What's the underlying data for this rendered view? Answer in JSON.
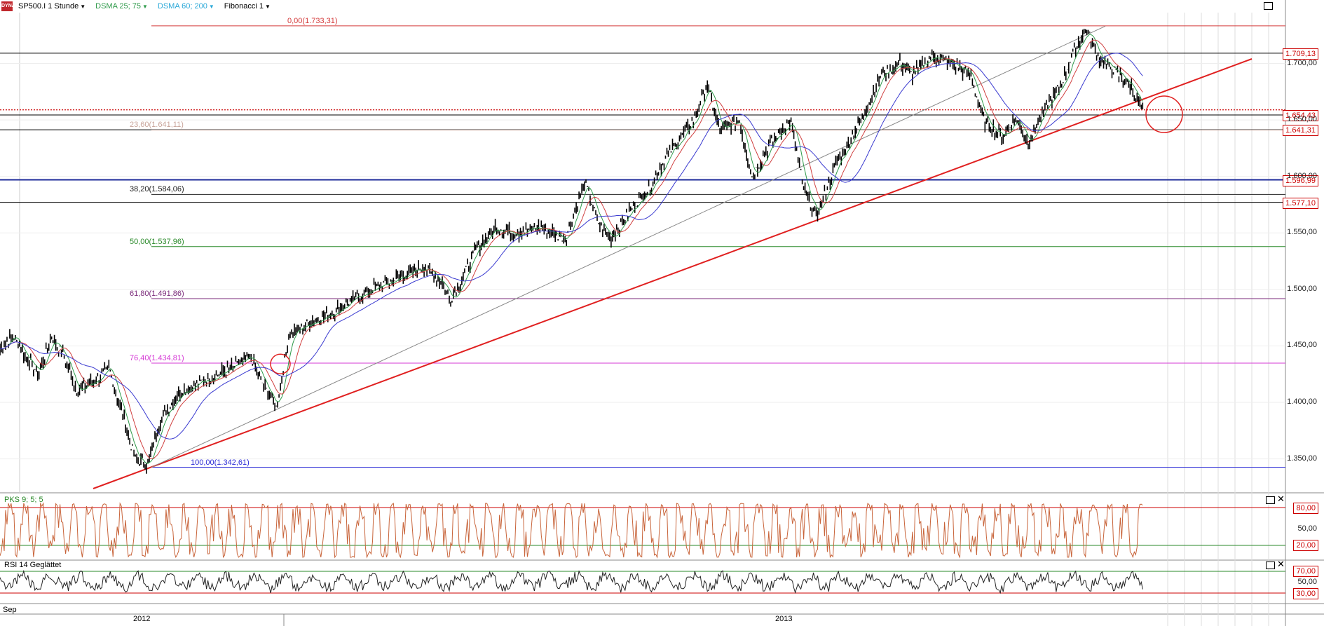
{
  "toolbar": {
    "symbol": "SP500.I 1 Stunde",
    "dsma1": "DSMA 25; 75",
    "dsma2": "DSMA 60; 200",
    "fibonacci": "Fibonacci 1",
    "logo_text": "DYNA"
  },
  "fib_levels": [
    {
      "label": "0,00(1.733,31)",
      "value": 1733.31,
      "color": "#d43a3a"
    },
    {
      "label": "23,60(1.641,11)",
      "value": 1641.11,
      "color": "#c8a49a"
    },
    {
      "label": "38,20(1.584,06)",
      "value": 1584.06,
      "color": "#222222"
    },
    {
      "label": "50,00(1.537,96)",
      "value": 1537.96,
      "color": "#2a8a2a"
    },
    {
      "label": "61,80(1.491,86)",
      "value": 1491.86,
      "color": "#7a2a7a"
    },
    {
      "label": "76,40(1.434,81)",
      "value": 1434.81,
      "color": "#d63ad6"
    },
    {
      "label": "100,00(1.342,61)",
      "value": 1342.61,
      "color": "#2a2ad6"
    }
  ],
  "price_tags": [
    {
      "label": "1.709,13",
      "value": 1709.13
    },
    {
      "label": "1.654,43",
      "value": 1654.43
    },
    {
      "label": "1.641,31",
      "value": 1641.31
    },
    {
      "label": "1.596,99",
      "value": 1596.99
    },
    {
      "label": "1.577,10",
      "value": 1577.1
    }
  ],
  "price_axis_labels": [
    "1.700,00",
    "1.650,00",
    "1.600,00",
    "1.550,00",
    "1.500,00",
    "1.450,00",
    "1.400,00",
    "1.350,00"
  ],
  "pks_panel": {
    "label": "PKS 9; 5; 5",
    "upper": "80,00",
    "lower": "20,00",
    "mid": "50,00"
  },
  "rsi_panel": {
    "label": "RSI 14 Geglättet",
    "upper": "70,00",
    "lower": "30,00",
    "mid": "50,00"
  },
  "x_axis": {
    "left_label": "Sep",
    "year1": "2012",
    "year2": "2013"
  },
  "chart_data": {
    "type": "line",
    "title": "SP500.I 1 Stunde",
    "price_path": [
      [
        0,
        1447
      ],
      [
        0.01,
        1460
      ],
      [
        0.02,
        1440
      ],
      [
        0.03,
        1425
      ],
      [
        0.04,
        1458
      ],
      [
        0.05,
        1440
      ],
      [
        0.06,
        1410
      ],
      [
        0.075,
        1420
      ],
      [
        0.085,
        1430
      ],
      [
        0.095,
        1390
      ],
      [
        0.105,
        1350
      ],
      [
        0.115,
        1345
      ],
      [
        0.125,
        1385
      ],
      [
        0.14,
        1410
      ],
      [
        0.16,
        1420
      ],
      [
        0.18,
        1430
      ],
      [
        0.195,
        1440
      ],
      [
        0.205,
        1415
      ],
      [
        0.215,
        1395
      ],
      [
        0.225,
        1460
      ],
      [
        0.24,
        1470
      ],
      [
        0.26,
        1480
      ],
      [
        0.28,
        1495
      ],
      [
        0.3,
        1505
      ],
      [
        0.32,
        1515
      ],
      [
        0.33,
        1520
      ],
      [
        0.345,
        1505
      ],
      [
        0.35,
        1490
      ],
      [
        0.36,
        1510
      ],
      [
        0.37,
        1535
      ],
      [
        0.385,
        1555
      ],
      [
        0.4,
        1550
      ],
      [
        0.42,
        1555
      ],
      [
        0.44,
        1545
      ],
      [
        0.455,
        1595
      ],
      [
        0.465,
        1560
      ],
      [
        0.475,
        1545
      ],
      [
        0.49,
        1570
      ],
      [
        0.505,
        1590
      ],
      [
        0.52,
        1620
      ],
      [
        0.54,
        1650
      ],
      [
        0.55,
        1682
      ],
      [
        0.56,
        1640
      ],
      [
        0.575,
        1650
      ],
      [
        0.585,
        1600
      ],
      [
        0.6,
        1630
      ],
      [
        0.615,
        1650
      ],
      [
        0.625,
        1590
      ],
      [
        0.635,
        1565
      ],
      [
        0.65,
        1610
      ],
      [
        0.67,
        1650
      ],
      [
        0.685,
        1690
      ],
      [
        0.7,
        1700
      ],
      [
        0.71,
        1690
      ],
      [
        0.725,
        1707
      ],
      [
        0.74,
        1700
      ],
      [
        0.755,
        1690
      ],
      [
        0.765,
        1650
      ],
      [
        0.78,
        1635
      ],
      [
        0.79,
        1652
      ],
      [
        0.8,
        1630
      ],
      [
        0.81,
        1655
      ],
      [
        0.825,
        1680
      ],
      [
        0.835,
        1710
      ],
      [
        0.845,
        1730
      ],
      [
        0.855,
        1705
      ],
      [
        0.87,
        1690
      ],
      [
        0.88,
        1680
      ],
      [
        0.89,
        1655
      ]
    ],
    "fib_high": 1733.31,
    "fib_low": 1342.61,
    "y_axis_range": [
      1320,
      1745
    ],
    "y_axis_ticks": [
      1350,
      1400,
      1450,
      1500,
      1550,
      1600,
      1650,
      1700
    ],
    "series": [
      {
        "name": "DSMA 25; 75",
        "color": "#2e9a4a"
      },
      {
        "name": "DSMA 60; 200",
        "color": "#3a3ad0"
      }
    ]
  },
  "colors": {
    "trendline": "#e02020",
    "channel_line": "#888888",
    "candle": "#000000",
    "pks": "#c8643a",
    "rsi": "#222222",
    "grid_h": "#c8c8c8"
  }
}
